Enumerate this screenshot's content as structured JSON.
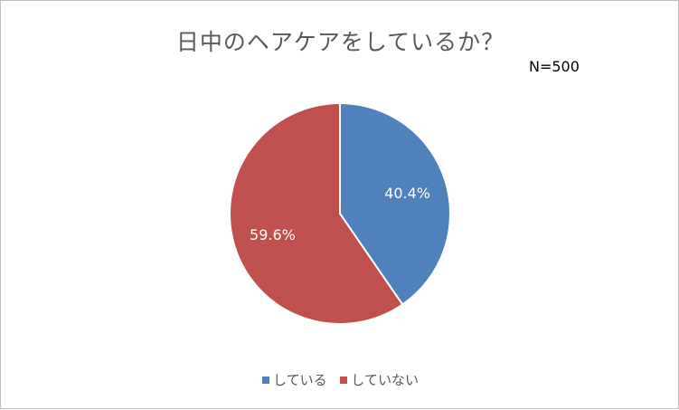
{
  "chart_data": {
    "type": "pie",
    "title": "日中のヘアケアをしているか？",
    "note": "N=500",
    "slices": [
      {
        "label": "している",
        "value": 40.4,
        "display": "40.4%",
        "color": "#4f81bd"
      },
      {
        "label": "していない",
        "value": 59.6,
        "display": "59.6%",
        "color": "#c0504d"
      }
    ],
    "legend_position": "bottom",
    "start_angle_deg": 0,
    "direction": "clockwise"
  }
}
